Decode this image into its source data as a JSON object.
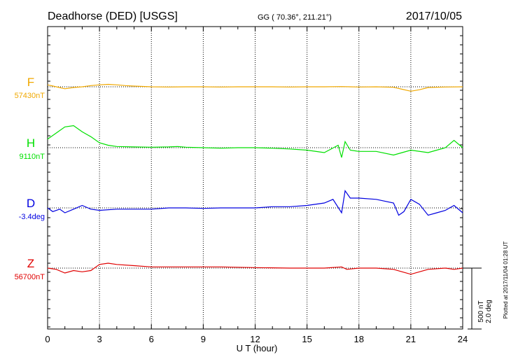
{
  "header": {
    "station": "Deadhorse (DED)  [USGS]",
    "coords": "GG ( 70.36°, 211.21°)",
    "date": "2017/10/05"
  },
  "plotted_note": "Plotted at 2017/11/04 01:28 UT",
  "chart_data": {
    "type": "line",
    "xlabel": "U T (hour)",
    "xlim": [
      0,
      24
    ],
    "xticks": [
      "0",
      "3",
      "6",
      "9",
      "12",
      "15",
      "18",
      "21",
      "24"
    ],
    "scale_bar": {
      "label_nt": "500 nT",
      "label_deg": "2.0 deg"
    },
    "series": [
      {
        "name": "F",
        "baseline_label": "57430nT",
        "color": "#f0a800",
        "points": [
          [
            0,
            8
          ],
          [
            0.5,
            0
          ],
          [
            1,
            -8
          ],
          [
            1.5,
            -3
          ],
          [
            2,
            0
          ],
          [
            2.5,
            5
          ],
          [
            3,
            8
          ],
          [
            3.5,
            10
          ],
          [
            4,
            8
          ],
          [
            4.5,
            5
          ],
          [
            5,
            3
          ],
          [
            6,
            0
          ],
          [
            7,
            -1
          ],
          [
            8,
            0
          ],
          [
            9,
            0
          ],
          [
            10,
            -1
          ],
          [
            11,
            0
          ],
          [
            12,
            0
          ],
          [
            13,
            0
          ],
          [
            14,
            -1
          ],
          [
            15,
            0
          ],
          [
            16,
            0
          ],
          [
            17,
            1
          ],
          [
            17.5,
            0
          ],
          [
            18,
            -1
          ],
          [
            19,
            0
          ],
          [
            20,
            -2
          ],
          [
            20.5,
            -10
          ],
          [
            21,
            -18
          ],
          [
            21.5,
            -12
          ],
          [
            22,
            -3
          ],
          [
            23,
            -1
          ],
          [
            24,
            0
          ]
        ]
      },
      {
        "name": "H",
        "baseline_label": "9110nT",
        "color": "#00e000",
        "points": [
          [
            0,
            35
          ],
          [
            0.5,
            60
          ],
          [
            1,
            85
          ],
          [
            1.5,
            90
          ],
          [
            2,
            65
          ],
          [
            2.5,
            45
          ],
          [
            3,
            20
          ],
          [
            3.5,
            10
          ],
          [
            4,
            5
          ],
          [
            5,
            3
          ],
          [
            6,
            2
          ],
          [
            7,
            3
          ],
          [
            7.5,
            5
          ],
          [
            8,
            2
          ],
          [
            9,
            0
          ],
          [
            10,
            -2
          ],
          [
            11,
            0
          ],
          [
            12,
            0
          ],
          [
            13,
            -2
          ],
          [
            14,
            -5
          ],
          [
            15,
            -10
          ],
          [
            16,
            -20
          ],
          [
            16.8,
            10
          ],
          [
            17,
            -40
          ],
          [
            17.2,
            25
          ],
          [
            17.5,
            -10
          ],
          [
            18,
            -15
          ],
          [
            19,
            -15
          ],
          [
            20,
            -30
          ],
          [
            20.5,
            -20
          ],
          [
            21,
            -10
          ],
          [
            22,
            -20
          ],
          [
            22.5,
            -10
          ],
          [
            23,
            0
          ],
          [
            23.5,
            30
          ],
          [
            24,
            0
          ]
        ]
      },
      {
        "name": "D",
        "baseline_label": "-3.4deg",
        "color": "#0000e0",
        "points": [
          [
            0,
            0
          ],
          [
            0.3,
            -15
          ],
          [
            0.7,
            -5
          ],
          [
            1,
            -20
          ],
          [
            1.5,
            -5
          ],
          [
            2,
            10
          ],
          [
            2.5,
            -5
          ],
          [
            3,
            -10
          ],
          [
            4,
            -5
          ],
          [
            5,
            -5
          ],
          [
            6,
            -5
          ],
          [
            7,
            0
          ],
          [
            8,
            0
          ],
          [
            9,
            -2
          ],
          [
            10,
            0
          ],
          [
            11,
            0
          ],
          [
            12,
            0
          ],
          [
            13,
            5
          ],
          [
            14,
            5
          ],
          [
            15,
            10
          ],
          [
            16,
            20
          ],
          [
            16.5,
            35
          ],
          [
            17,
            -20
          ],
          [
            17.2,
            70
          ],
          [
            17.5,
            40
          ],
          [
            18,
            40
          ],
          [
            19,
            35
          ],
          [
            20,
            20
          ],
          [
            20.3,
            -30
          ],
          [
            20.6,
            -15
          ],
          [
            21,
            35
          ],
          [
            21.5,
            15
          ],
          [
            22,
            -30
          ],
          [
            22.5,
            -20
          ],
          [
            23,
            -10
          ],
          [
            23.5,
            10
          ],
          [
            24,
            -20
          ]
        ]
      },
      {
        "name": "Z",
        "baseline_label": "56700nT",
        "color": "#e00000",
        "points": [
          [
            0,
            0
          ],
          [
            0.5,
            -5
          ],
          [
            1,
            -20
          ],
          [
            1.5,
            -10
          ],
          [
            2,
            -15
          ],
          [
            2.5,
            -10
          ],
          [
            3,
            15
          ],
          [
            3.5,
            20
          ],
          [
            4,
            15
          ],
          [
            5,
            10
          ],
          [
            6,
            5
          ],
          [
            8,
            5
          ],
          [
            10,
            5
          ],
          [
            12,
            2
          ],
          [
            14,
            0
          ],
          [
            15,
            0
          ],
          [
            16,
            0
          ],
          [
            17,
            5
          ],
          [
            17.3,
            -5
          ],
          [
            18,
            0
          ],
          [
            19,
            0
          ],
          [
            20,
            -5
          ],
          [
            20.5,
            -15
          ],
          [
            21,
            -25
          ],
          [
            21.5,
            -15
          ],
          [
            22,
            -5
          ],
          [
            23,
            0
          ],
          [
            23.5,
            -5
          ],
          [
            24,
            0
          ]
        ]
      }
    ]
  }
}
